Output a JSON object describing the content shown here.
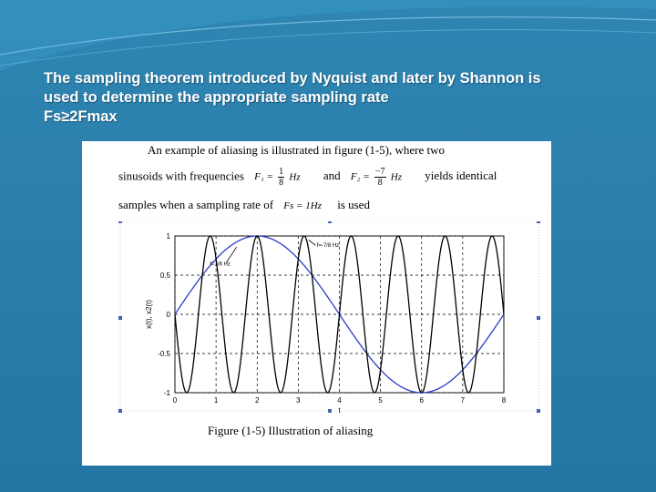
{
  "slide": {
    "heading_lines": [
      "The sampling theorem introduced by Nyquist and later by Shannon is",
      "used to determine the appropriate sampling rate",
      "Fs≥2Fmax"
    ]
  },
  "document": {
    "line1": "An example of aliasing is illustrated in figure (1-5), where two",
    "line2_a": "sinusoids with frequencies",
    "f1_label": "F₁ =",
    "f1_num": "1",
    "f1_den": "8",
    "f1_unit": "Hz",
    "and_text": "and",
    "f2_label": "F₂ =",
    "f2_num": "−7",
    "f2_den": "8",
    "f2_unit": "Hz",
    "line2_b": "yields identical",
    "line3_a": "samples when a sampling rate of",
    "fs_expr": "Fs = 1Hz",
    "line3_b": "is used",
    "caption": "Figure (1-5) Illustration of aliasing"
  },
  "chart_data": {
    "type": "line",
    "xlabel": "t",
    "ylabel": "x(t), x2(t)",
    "xlim": [
      0,
      8
    ],
    "ylim": [
      -1,
      1
    ],
    "xticks": [
      "0",
      "1",
      "2",
      "3",
      "4",
      "5",
      "6",
      "7",
      "8"
    ],
    "yticks": [
      "1",
      "0.5",
      "0",
      "-0.5",
      "-1"
    ],
    "grid": true,
    "annotations": [
      "f=1/8 Hz",
      "f=-7/8 Hz"
    ],
    "series": [
      {
        "name": "f=1/8 Hz",
        "function": "cos(2*pi*(1/8)*t - pi/2)",
        "color": "#2a3cc8"
      },
      {
        "name": "f=-7/8 Hz",
        "function": "cos(2*pi*(7/8)*t + pi/2)",
        "color": "#000000"
      }
    ]
  }
}
